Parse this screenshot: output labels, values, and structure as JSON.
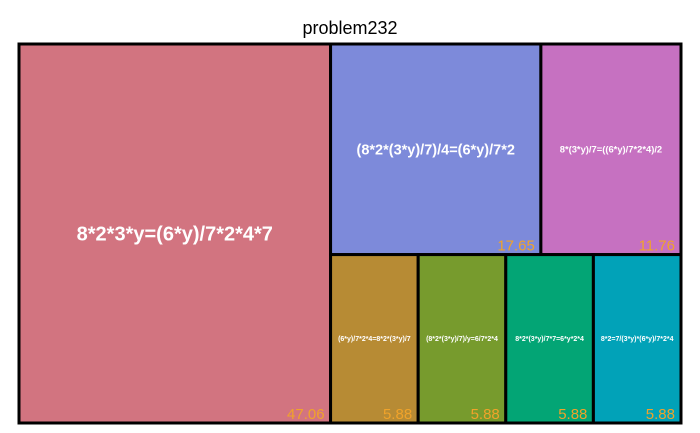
{
  "chart_data": {
    "type": "treemap",
    "title": "problem232",
    "items": [
      {
        "label": "8*2*3*y=(6*y)/7*2*4*7",
        "value": 47.06,
        "color": "#D27480"
      },
      {
        "label": "(8*2*(3*y)/7)/4=(6*y)/7*2",
        "value": 17.65,
        "color": "#7D8ADA"
      },
      {
        "label": "8*(3*y)/7=((6*y)/7*2*4)/2",
        "value": 11.76,
        "color": "#C671C1"
      },
      {
        "label": "(6*y)/7*2*4=8*2*(3*y)/7",
        "value": 5.88,
        "color": "#B78B34"
      },
      {
        "label": "(8*2*(3*y)/7)/y=6/7*2*4",
        "value": 5.88,
        "color": "#779B2D"
      },
      {
        "label": "8*2*(3*y)/7*7=6*y*2*4",
        "value": 5.88,
        "color": "#03A575"
      },
      {
        "label": "8*2=7/(3*y)*(6*y)/7*2*4",
        "value": 5.88,
        "color": "#01A2B8"
      }
    ],
    "value_label_color": "#F0A32A"
  }
}
